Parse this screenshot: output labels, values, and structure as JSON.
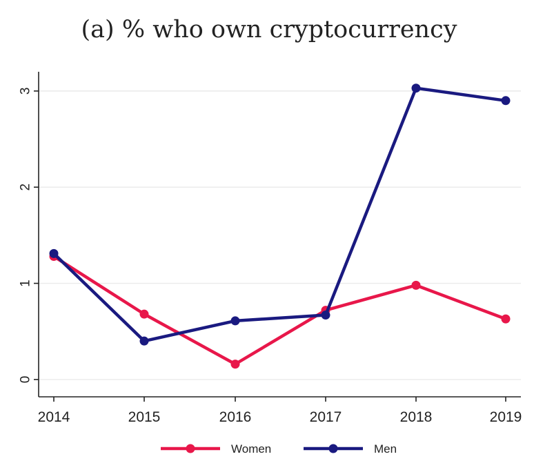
{
  "chart_data": {
    "type": "line",
    "title": "(a) % who own cryptocurrency",
    "xlabel": "",
    "ylabel": "",
    "categories": [
      "2014",
      "2015",
      "2016",
      "2017",
      "2018",
      "2019"
    ],
    "y_ticks": [
      "0",
      "1",
      "2",
      "3"
    ],
    "ylim": [
      -0.18,
      3.2
    ],
    "grid": true,
    "legend_position": "bottom",
    "series": [
      {
        "name": "Women",
        "color": "#e8174a",
        "values": [
          1.28,
          0.68,
          0.16,
          0.72,
          0.98,
          0.63
        ]
      },
      {
        "name": "Men",
        "color": "#1a1a80",
        "values": [
          1.31,
          0.4,
          0.61,
          0.67,
          3.03,
          2.9
        ]
      }
    ]
  }
}
